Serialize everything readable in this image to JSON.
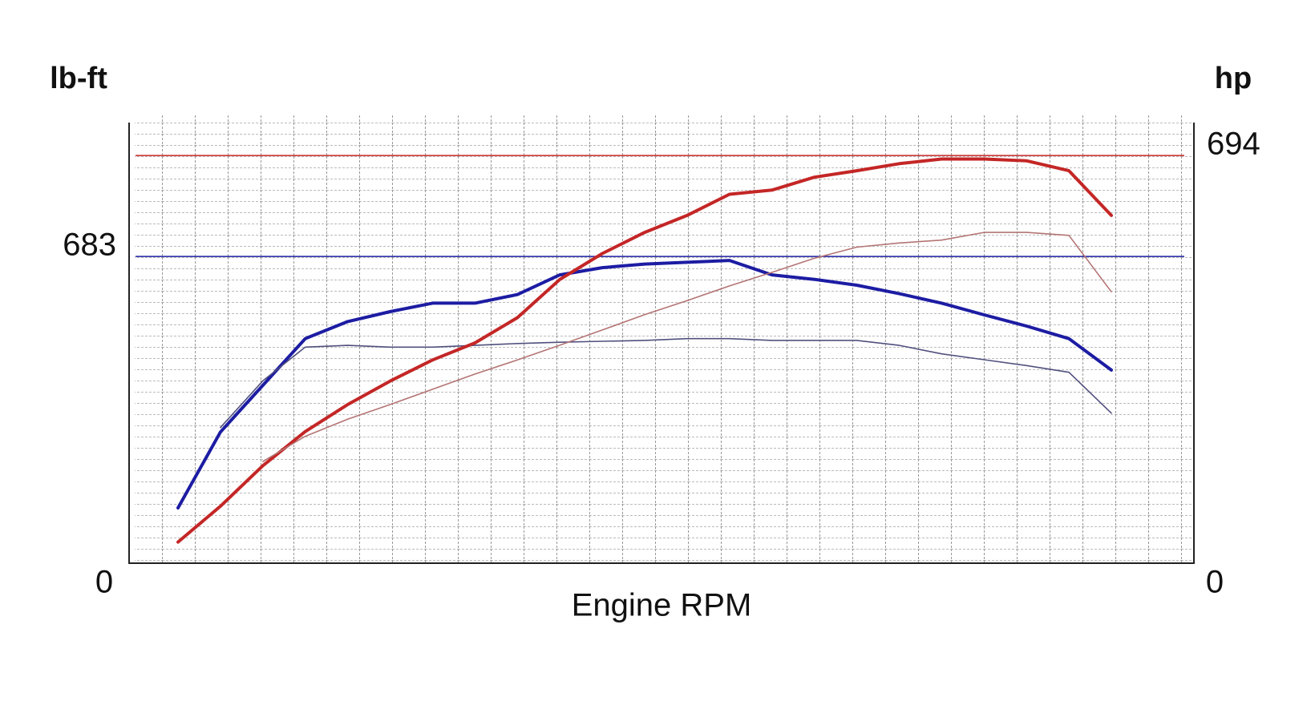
{
  "chart_data": {
    "type": "line",
    "x_label": "Engine RPM",
    "y_label": "lb-ft",
    "y2_label": "hp",
    "categories": [
      null,
      null,
      null,
      null,
      null,
      null,
      null,
      null,
      null,
      null,
      null,
      null,
      null,
      null,
      null,
      null,
      null,
      null,
      null,
      null,
      null,
      null,
      null
    ],
    "ylim": [
      0,
      981
    ],
    "yticks": [
      0,
      683
    ],
    "y2lim": [
      0,
      750
    ],
    "y2ticks": [
      0,
      694
    ],
    "series": [
      {
        "color": "#1c1ca3",
        "axis": "y",
        "values": [
          123,
          292,
          396,
          500,
          538,
          560,
          579,
          579,
          598,
          642,
          658,
          666,
          670,
          674,
          642,
          632,
          619,
          600,
          579,
          553,
          528,
          500,
          430
        ]
      },
      {
        "color": "#50507e",
        "axis": "y",
        "values": [
          null,
          302,
          406,
          481,
          485,
          481,
          481,
          485,
          489,
          492,
          494,
          496,
          500,
          500,
          496,
          496,
          496,
          485,
          466,
          453,
          440,
          425,
          334
        ]
      },
      {
        "color": "#c42626",
        "axis": "y2",
        "values": [
          36,
          97,
          166,
          224,
          270,
          310,
          346,
          375,
          418,
          483,
          527,
          563,
          592,
          628,
          635,
          657,
          668,
          680,
          688,
          688,
          685,
          668,
          592
        ]
      },
      {
        "color": "#b47474",
        "axis": "y2",
        "values": [
          null,
          null,
          173,
          216,
          245,
          270,
          296,
          322,
          346,
          371,
          397,
          423,
          447,
          472,
          495,
          519,
          538,
          545,
          550,
          563,
          563,
          558,
          462
        ]
      }
    ]
  }
}
